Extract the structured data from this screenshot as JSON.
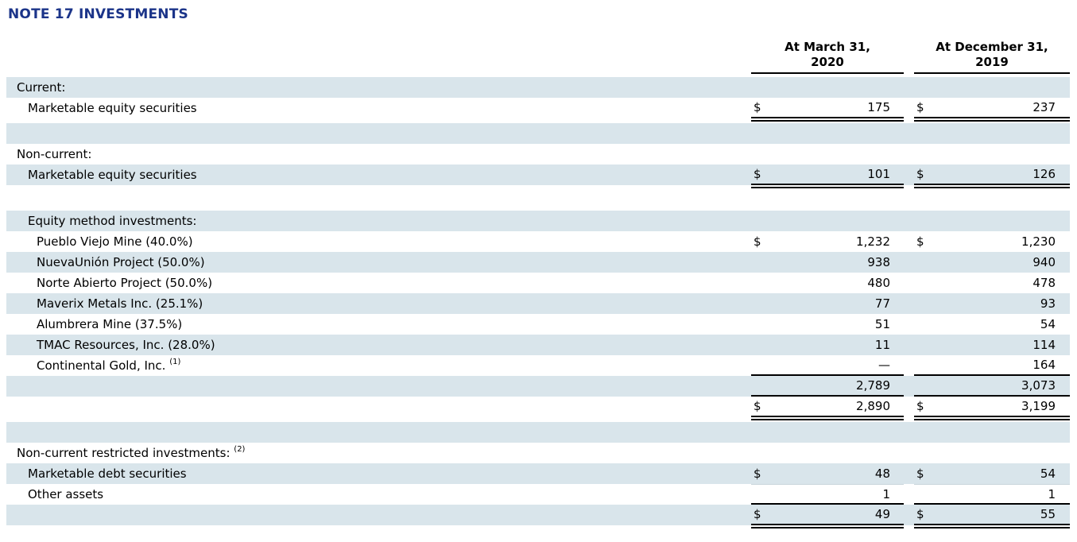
{
  "title": "NOTE 17 INVESTMENTS",
  "columns": [
    {
      "line1": "At March 31,",
      "line2": "2020"
    },
    {
      "line1": "At December 31,",
      "line2": "2019"
    }
  ],
  "rows": [
    {
      "label": "Current:",
      "indent": 0,
      "bg": "blue",
      "c1": {
        "d": "",
        "v": ""
      },
      "c2": {
        "d": "",
        "v": ""
      },
      "border": "none"
    },
    {
      "label": "Marketable equity securities",
      "indent": 1,
      "bg": "white",
      "c1": {
        "d": "$",
        "v": "175"
      },
      "c2": {
        "d": "$",
        "v": "237"
      },
      "border": "double"
    },
    {
      "label": "",
      "indent": 0,
      "bg": "blue",
      "c1": {
        "d": "",
        "v": ""
      },
      "c2": {
        "d": "",
        "v": ""
      },
      "border": "none"
    },
    {
      "label": "Non-current:",
      "indent": 0,
      "bg": "white",
      "c1": {
        "d": "",
        "v": ""
      },
      "c2": {
        "d": "",
        "v": ""
      },
      "border": "none"
    },
    {
      "label": "Marketable equity securities",
      "indent": 1,
      "bg": "blue",
      "c1": {
        "d": "$",
        "v": "101"
      },
      "c2": {
        "d": "$",
        "v": "126"
      },
      "border": "double"
    },
    {
      "label": "",
      "indent": 0,
      "bg": "white",
      "c1": {
        "d": "",
        "v": ""
      },
      "c2": {
        "d": "",
        "v": ""
      },
      "border": "none"
    },
    {
      "label": "Equity method investments:",
      "indent": 1,
      "bg": "blue",
      "c1": {
        "d": "",
        "v": ""
      },
      "c2": {
        "d": "",
        "v": ""
      },
      "border": "none"
    },
    {
      "label": "Pueblo Viejo Mine (40.0%)",
      "indent": 2,
      "bg": "white",
      "c1": {
        "d": "$",
        "v": "1,232"
      },
      "c2": {
        "d": "$",
        "v": "1,230"
      },
      "border": "none"
    },
    {
      "label": "NuevaUnión Project (50.0%)",
      "indent": 2,
      "bg": "blue",
      "c1": {
        "d": "",
        "v": "938"
      },
      "c2": {
        "d": "",
        "v": "940"
      },
      "border": "none"
    },
    {
      "label": "Norte Abierto Project (50.0%)",
      "indent": 2,
      "bg": "white",
      "c1": {
        "d": "",
        "v": "480"
      },
      "c2": {
        "d": "",
        "v": "478"
      },
      "border": "none"
    },
    {
      "label": "Maverix Metals Inc. (25.1%)",
      "indent": 2,
      "bg": "blue",
      "c1": {
        "d": "",
        "v": "77"
      },
      "c2": {
        "d": "",
        "v": "93"
      },
      "border": "none"
    },
    {
      "label": "Alumbrera Mine (37.5%)",
      "indent": 2,
      "bg": "white",
      "c1": {
        "d": "",
        "v": "51"
      },
      "c2": {
        "d": "",
        "v": "54"
      },
      "border": "none"
    },
    {
      "label": "TMAC Resources, Inc. (28.0%)",
      "indent": 2,
      "bg": "blue",
      "c1": {
        "d": "",
        "v": "11"
      },
      "c2": {
        "d": "",
        "v": "114"
      },
      "border": "none"
    },
    {
      "label": "Continental Gold, Inc.",
      "sup": "(1)",
      "indent": 2,
      "bg": "white",
      "c1": {
        "d": "",
        "v": "—"
      },
      "c2": {
        "d": "",
        "v": "164"
      },
      "border": "single"
    },
    {
      "label": "",
      "indent": 0,
      "bg": "blue",
      "c1": {
        "d": "",
        "v": "2,789"
      },
      "c2": {
        "d": "",
        "v": "3,073"
      },
      "border": "single"
    },
    {
      "label": "",
      "indent": 0,
      "bg": "white",
      "c1": {
        "d": "$",
        "v": "2,890"
      },
      "c2": {
        "d": "$",
        "v": "3,199"
      },
      "border": "double"
    },
    {
      "label": "",
      "indent": 0,
      "bg": "blue",
      "c1": {
        "d": "",
        "v": ""
      },
      "c2": {
        "d": "",
        "v": ""
      },
      "border": "none"
    },
    {
      "label": "Non-current restricted investments:",
      "sup": "(2)",
      "indent": 0,
      "bg": "white",
      "c1": {
        "d": "",
        "v": ""
      },
      "c2": {
        "d": "",
        "v": ""
      },
      "border": "none"
    },
    {
      "label": "Marketable debt securities",
      "indent": 1,
      "bg": "blue",
      "c1": {
        "d": "$",
        "v": "48"
      },
      "c2": {
        "d": "$",
        "v": "54"
      },
      "border": "none"
    },
    {
      "label": "Other assets",
      "indent": 1,
      "bg": "white",
      "c1": {
        "d": "",
        "v": "1"
      },
      "c2": {
        "d": "",
        "v": "1"
      },
      "border": "single",
      "faint_top": true
    },
    {
      "label": "",
      "indent": 0,
      "bg": "blue",
      "c1": {
        "d": "$",
        "v": "49"
      },
      "c2": {
        "d": "$",
        "v": "55"
      },
      "border": "double"
    }
  ],
  "colors": {
    "row_highlight": "#d9e5eb",
    "title": "#1b3489",
    "border": "#000000"
  }
}
